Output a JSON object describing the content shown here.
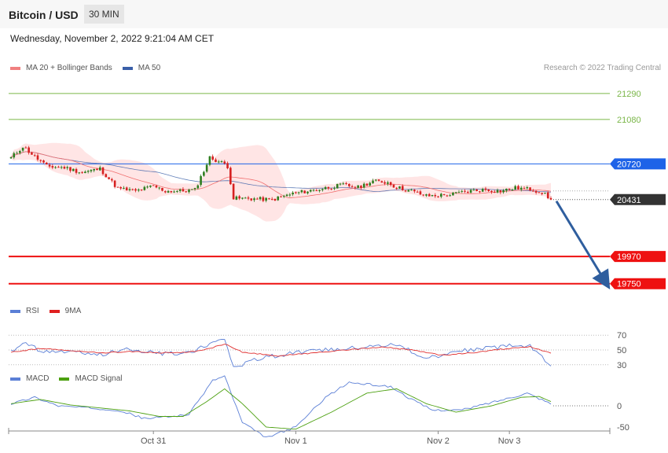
{
  "header": {
    "title": "Bitcoin / USD",
    "interval": "30 MIN"
  },
  "subtitle": "Wednesday, November 2, 2022 9:21:04 AM CET",
  "copyright": "Research © 2022 Trading Central",
  "colors": {
    "up": "#2e7d1f",
    "down": "#d62020",
    "ma20": "#f07070",
    "ma50": "#3a5fa8",
    "band": "#ffdede",
    "resistance": "#7ab648",
    "pivot": "#1e63e8",
    "support": "#ee1111",
    "arrow": "#2f5e9e",
    "rsi": "#5b7fd6",
    "rsi9": "#e03030",
    "macd": "#5b7fd6",
    "macdSignal": "#4ca010"
  },
  "chart_data": [
    {
      "type": "candlestick",
      "title": "Bitcoin / USD",
      "legend": [
        "MA 20 + Bollinger Bands",
        "MA 50"
      ],
      "ylim": [
        19640,
        21410
      ],
      "last_price": "20431",
      "levels": [
        {
          "label": "21290",
          "value": 21290,
          "kind": "resistance"
        },
        {
          "label": "21080",
          "value": 21080,
          "kind": "resistance"
        },
        {
          "label": "20720",
          "value": 20720,
          "kind": "pivot"
        },
        {
          "label": "19970",
          "value": 19970,
          "kind": "support"
        },
        {
          "label": "19750",
          "value": 19750,
          "kind": "support"
        }
      ],
      "projection_target": 19750,
      "x_ticks": [
        "Oct 31",
        "Nov 1",
        "Nov 2",
        "Nov 3"
      ],
      "close_anchors": [
        [
          0,
          20770
        ],
        [
          4,
          20860
        ],
        [
          8,
          20780
        ],
        [
          12,
          20700
        ],
        [
          18,
          20690
        ],
        [
          24,
          20650
        ],
        [
          30,
          20680
        ],
        [
          36,
          20520
        ],
        [
          42,
          20500
        ],
        [
          48,
          20540
        ],
        [
          52,
          20500
        ],
        [
          58,
          20500
        ],
        [
          62,
          20510
        ],
        [
          67,
          20770
        ],
        [
          72,
          20720
        ],
        [
          73,
          20700
        ],
        [
          75,
          20440
        ],
        [
          80,
          20440
        ],
        [
          88,
          20430
        ],
        [
          95,
          20480
        ],
        [
          105,
          20520
        ],
        [
          112,
          20550
        ],
        [
          117,
          20530
        ],
        [
          122,
          20580
        ],
        [
          127,
          20570
        ],
        [
          130,
          20530
        ],
        [
          135,
          20500
        ],
        [
          140,
          20460
        ],
        [
          148,
          20470
        ],
        [
          154,
          20500
        ],
        [
          160,
          20510
        ],
        [
          165,
          20500
        ],
        [
          170,
          20525
        ],
        [
          175,
          20515
        ],
        [
          179,
          20490
        ],
        [
          182,
          20431
        ]
      ]
    },
    {
      "type": "line",
      "title": "RSI",
      "series_names": [
        "RSI",
        "9MA"
      ],
      "y_ticks": [
        70,
        50,
        30
      ],
      "rsi_anchors": [
        [
          0,
          47
        ],
        [
          5,
          60
        ],
        [
          10,
          48
        ],
        [
          20,
          47
        ],
        [
          30,
          44
        ],
        [
          40,
          52
        ],
        [
          50,
          45
        ],
        [
          60,
          46
        ],
        [
          67,
          59
        ],
        [
          72,
          66
        ],
        [
          75,
          27
        ],
        [
          85,
          40
        ],
        [
          100,
          48
        ],
        [
          120,
          55
        ],
        [
          130,
          58
        ],
        [
          140,
          38
        ],
        [
          150,
          48
        ],
        [
          160,
          52
        ],
        [
          170,
          56
        ],
        [
          175,
          55
        ],
        [
          182,
          30
        ]
      ],
      "ma9_anchors": [
        [
          0,
          47
        ],
        [
          10,
          52
        ],
        [
          20,
          49
        ],
        [
          30,
          46
        ],
        [
          40,
          48
        ],
        [
          50,
          46
        ],
        [
          60,
          47
        ],
        [
          67,
          52
        ],
        [
          72,
          58
        ],
        [
          78,
          47
        ],
        [
          90,
          42
        ],
        [
          105,
          47
        ],
        [
          125,
          54
        ],
        [
          135,
          50
        ],
        [
          145,
          43
        ],
        [
          155,
          46
        ],
        [
          165,
          51
        ],
        [
          175,
          54
        ],
        [
          182,
          46
        ]
      ]
    },
    {
      "type": "line",
      "title": "MACD",
      "series_names": [
        "MACD",
        "MACD Signal"
      ],
      "y_ticks": [
        0,
        -50
      ],
      "macd_anchors": [
        [
          0,
          5
        ],
        [
          8,
          20
        ],
        [
          16,
          0
        ],
        [
          26,
          -5
        ],
        [
          36,
          -10
        ],
        [
          45,
          -30
        ],
        [
          54,
          -25
        ],
        [
          60,
          -20
        ],
        [
          68,
          60
        ],
        [
          72,
          70
        ],
        [
          78,
          -40
        ],
        [
          86,
          -75
        ],
        [
          96,
          -50
        ],
        [
          106,
          20
        ],
        [
          114,
          55
        ],
        [
          128,
          45
        ],
        [
          135,
          15
        ],
        [
          142,
          -10
        ],
        [
          152,
          -10
        ],
        [
          166,
          15
        ],
        [
          174,
          30
        ],
        [
          182,
          5
        ]
      ],
      "signal_anchors": [
        [
          0,
          5
        ],
        [
          10,
          15
        ],
        [
          20,
          2
        ],
        [
          30,
          -5
        ],
        [
          40,
          -12
        ],
        [
          50,
          -25
        ],
        [
          58,
          -25
        ],
        [
          66,
          10
        ],
        [
          72,
          40
        ],
        [
          78,
          5
        ],
        [
          86,
          -50
        ],
        [
          96,
          -55
        ],
        [
          108,
          -15
        ],
        [
          120,
          30
        ],
        [
          130,
          40
        ],
        [
          140,
          5
        ],
        [
          150,
          -15
        ],
        [
          162,
          0
        ],
        [
          172,
          20
        ],
        [
          178,
          22
        ],
        [
          182,
          10
        ]
      ]
    }
  ]
}
